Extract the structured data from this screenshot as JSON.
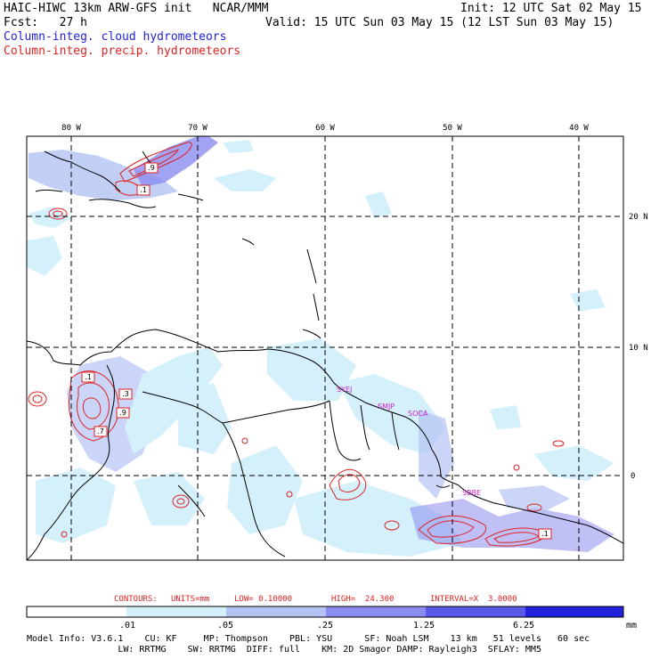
{
  "header": {
    "title": "HAIC-HIWC 13km ARW-GFS init   NCAR/MMM",
    "fcst": "Fcst:   27 h",
    "init": "Init: 12 UTC Sat 02 May 15",
    "valid": "Valid: 15 UTC Sun 03 May 15 (12 LST Sun 03 May 15)",
    "field_cloud": "Column-integ. cloud hydrometeors",
    "field_precip": "Column-integ. precip. hydrometeors"
  },
  "colors": {
    "cloud_text": "#2222dd",
    "precip_text": "#dd2222",
    "contour": "#dd2222",
    "station": "#cc22cc"
  },
  "map": {
    "lon_labels": [
      "80 W",
      "70 W",
      "60 W",
      "50 W",
      "40 W"
    ],
    "lat_labels": [
      "20 N",
      "10 N",
      "0"
    ],
    "stations": [
      "SYEJ",
      "SMJP",
      "SOCA",
      "SBBE"
    ],
    "contour_labels": [
      ".9",
      ".1",
      ".1",
      ".3",
      ".9",
      ".7",
      ".1"
    ]
  },
  "contours": {
    "label": "CONTOURS:",
    "units": "UNITS=mm",
    "low": "LOW= 0.10000",
    "high": "HIGH=  24.300",
    "interval": "INTERVAL=X  3.0000"
  },
  "colorbar": {
    "ticks": [
      ".01",
      ".05",
      ".25",
      "1.25",
      "6.25"
    ],
    "units": "mm",
    "colors": [
      "#ffffff",
      "#d4f0fb",
      "#b3c3f3",
      "#8c8cf0",
      "#5a5ae8",
      "#2222dd"
    ]
  },
  "model_info": {
    "line1": "Model Info: V3.6.1    CU: KF     MP: Thompson    PBL: YSU      SF: Noah LSM    13 km   51 levels   60 sec",
    "line2": "                 LW: RRTMG    SW: RRTMG  DIFF: full    KM: 2D Smagor DAMP: Rayleigh3  SFLAY: MM5"
  }
}
